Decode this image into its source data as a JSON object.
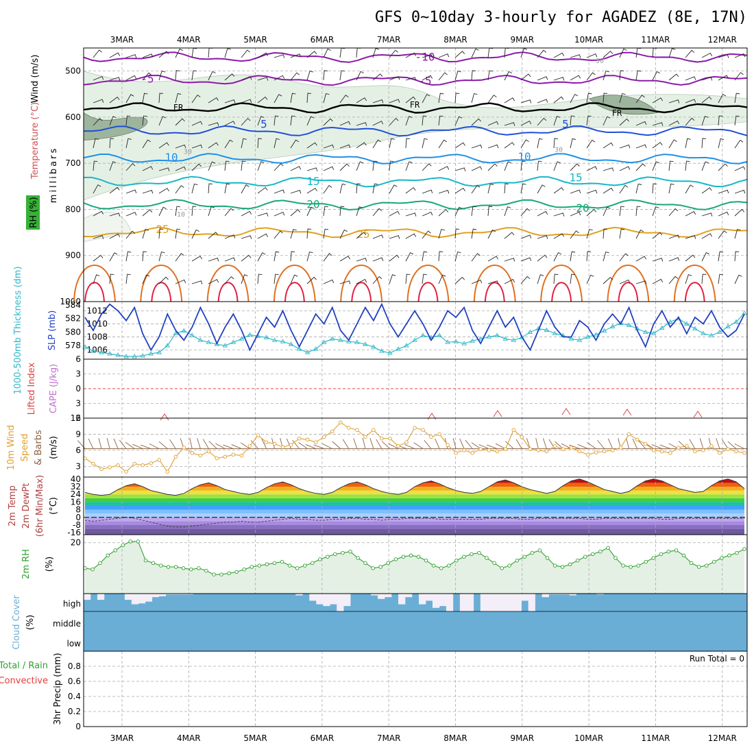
{
  "title": "GFS 0~10day 3-hourly for AGADEZ (8E, 17N)",
  "dates": [
    "3MAR",
    "4MAR",
    "5MAR",
    "6MAR",
    "7MAR",
    "8MAR",
    "9MAR",
    "10MAR",
    "11MAR",
    "12MAR"
  ],
  "colors": {
    "purple": "#8a1aa8",
    "black": "#000000",
    "blue": "#1f4fd6",
    "lightblue": "#1e90e6",
    "teal": "#16b8c8",
    "green": "#19a77a",
    "orange": "#e0a020",
    "darkorange": "#e07020",
    "red": "#e02040",
    "rh_fill": "#e5f0e5",
    "cloud": "#6aaed6",
    "slp": "#2040c0",
    "thick": "#30b8c8",
    "wind": "#e0a030",
    "barb": "#8b6040",
    "rh2m": "#30a030"
  },
  "chart_data": [
    {
      "type": "heatmap",
      "name": "upper-air",
      "ylabel_parts": [
        "Wind (m/s)",
        "Temperature (°C)",
        "RH (%)"
      ],
      "ylabel": "millibars",
      "y_ticks": [
        500,
        600,
        700,
        800,
        900,
        1000
      ],
      "ylim": [
        450,
        1000
      ],
      "contour_labels": [
        "-10",
        "-5",
        "-5",
        "FR",
        "FR",
        "FR",
        "5",
        "5",
        "10",
        "10",
        "15",
        "15",
        "20",
        "20",
        "25",
        "25",
        "30",
        "30",
        "30",
        "10"
      ],
      "isotherms": [
        {
          "label": "-10",
          "level": 470
        },
        {
          "label": "-5",
          "level": 520
        },
        {
          "label": "FR",
          "level": 580
        },
        {
          "label": "5",
          "level": 630
        },
        {
          "label": "10",
          "level": 690
        },
        {
          "label": "15",
          "level": 740
        },
        {
          "label": "20",
          "level": 790
        },
        {
          "label": "25",
          "level": 850
        }
      ]
    },
    {
      "type": "line",
      "name": "slp-thickness",
      "ylabel_left": "1000-500mb Thickness (dm)",
      "ylabel_right": "SLP (mb)",
      "left_ticks": [
        578,
        580,
        582,
        584
      ],
      "right_ticks": [
        1006,
        1008,
        1010,
        1012
      ],
      "series": [
        {
          "name": "SLP (mb)",
          "values": [
            1011.0,
            1009.0,
            1011.5,
            1013.0,
            1012.0,
            1010.5,
            1012.5,
            1008.5,
            1006.0,
            1008.0,
            1011.5,
            1009.0,
            1007.5,
            1009.5,
            1012.5,
            1010.0,
            1007.0,
            1009.5,
            1011.5,
            1009.0,
            1006.0,
            1008.5,
            1011.0,
            1009.5,
            1012.0,
            1009.0,
            1006.5,
            1009.0,
            1011.5,
            1010.0,
            1012.5,
            1009.0,
            1007.5,
            1010.0,
            1012.5,
            1010.5,
            1013.0,
            1010.0,
            1008.0,
            1010.0,
            1012.0,
            1010.0,
            1007.5,
            1009.5,
            1012.0,
            1011.0,
            1012.5,
            1009.0,
            1007.0,
            1009.5,
            1012.0,
            1009.5,
            1011.0,
            1008.0,
            1006.0,
            1009.0,
            1012.0,
            1009.5,
            1008.0,
            1008.0,
            1010.5,
            1009.5,
            1007.5,
            1010.0,
            1011.5,
            1010.0,
            1012.5,
            1009.0,
            1006.5,
            1010.0,
            1012.0,
            1009.5,
            1011.0,
            1008.5,
            1011.0,
            1010.0,
            1012.0,
            1009.5,
            1008.0,
            1009.0,
            1011.5
          ]
        },
        {
          "name": "1000-500mb Thickness (dm)",
          "values": [
            577.8,
            577.2,
            577.0,
            576.8,
            576.6,
            576.4,
            576.4,
            576.5,
            576.8,
            577.0,
            578.0,
            579.8,
            580.2,
            579.5,
            578.8,
            578.5,
            578.2,
            578.0,
            578.5,
            579.0,
            579.6,
            579.4,
            579.2,
            578.8,
            578.6,
            578.2,
            577.5,
            577.0,
            577.5,
            578.5,
            579.0,
            578.8,
            578.6,
            578.5,
            578.2,
            577.8,
            577.2,
            576.9,
            577.5,
            578.0,
            578.8,
            579.5,
            579.2,
            579.5,
            578.5,
            578.6,
            578.3,
            578.7,
            579.0,
            579.3,
            579.5,
            579.0,
            578.8,
            579.2,
            580.0,
            580.5,
            580.3,
            579.8,
            579.5,
            579.0,
            578.8,
            579.3,
            579.6,
            580.2,
            580.8,
            581.3,
            581.0,
            580.5,
            580.0,
            579.8,
            580.6,
            581.5,
            582.0,
            581.2,
            580.5,
            579.8,
            579.5,
            580.0,
            580.8,
            581.5,
            582.8
          ]
        }
      ]
    },
    {
      "type": "line",
      "name": "lifted-cape",
      "ylabel": "Lifted Index",
      "ylabel2": "CAPE (J/kg)",
      "y_ticks": [
        -6,
        -3,
        0,
        3,
        6
      ],
      "ylim": [
        -6,
        6
      ]
    },
    {
      "type": "line",
      "name": "wind10m",
      "ylabel": "10m Wind Speed & Barbs (m/s)",
      "y_ticks": [
        3,
        6,
        9,
        12
      ],
      "ylim": [
        1,
        12
      ],
      "series": [
        {
          "name": "Speed",
          "values": [
            4.5,
            3.5,
            2.5,
            2.8,
            3.2,
            2.0,
            3.5,
            3.2,
            3.6,
            4.2,
            2.0,
            4.8,
            6.5,
            5.5,
            5.0,
            5.8,
            4.5,
            4.8,
            5.2,
            5.0,
            6.8,
            8.8,
            7.5,
            7.2,
            6.6,
            7.0,
            8.2,
            8.0,
            7.5,
            8.5,
            9.5,
            11.2,
            10.2,
            9.8,
            8.5,
            9.8,
            8.2,
            8.2,
            6.8,
            7.5,
            10.2,
            9.8,
            8.5,
            9.0,
            7.0,
            5.5,
            6.0,
            5.5,
            6.2,
            6.0,
            5.8,
            6.2,
            9.8,
            8.5,
            6.2,
            6.0,
            5.8,
            6.8,
            6.2,
            6.5,
            5.8,
            5.2,
            5.6,
            5.8,
            6.0,
            6.5,
            9.0,
            8.0,
            7.2,
            6.0,
            5.8,
            5.5,
            6.5,
            6.8,
            5.8,
            6.0,
            6.8,
            5.5,
            6.2,
            5.8,
            5.5
          ]
        }
      ]
    },
    {
      "type": "area",
      "name": "temp2m",
      "ylabel": "2m Temp 2m DewPt (6hr Min/Max) (°C)",
      "y_ticks": [
        -16,
        -8,
        0,
        8,
        16,
        24,
        32,
        40
      ],
      "ylim": [
        -18,
        42
      ],
      "series": [
        {
          "name": "2m Temp",
          "values": [
            26,
            24,
            23,
            24,
            29,
            33,
            35,
            32,
            28,
            26,
            24,
            23,
            25,
            30,
            34,
            36,
            33,
            29,
            27,
            25,
            24,
            26,
            31,
            35,
            37,
            34,
            30,
            27,
            25,
            24,
            26,
            31,
            35,
            37,
            34,
            30,
            27,
            25,
            24,
            26,
            32,
            36,
            38,
            35,
            31,
            28,
            26,
            25,
            27,
            32,
            37,
            39,
            36,
            32,
            29,
            27,
            25,
            27,
            33,
            38,
            40,
            37,
            33,
            29,
            27,
            25,
            27,
            33,
            38,
            40,
            38,
            34,
            30,
            28,
            26,
            27,
            33,
            38,
            40,
            37,
            30
          ]
        },
        {
          "name": "2m DewPt",
          "values": [
            -3,
            -4,
            -3,
            -2,
            -1,
            0,
            -1,
            -3,
            -5,
            -7,
            -9,
            -10,
            -10,
            -9,
            -8,
            -7,
            -6,
            -5,
            -5,
            -4,
            -5,
            -5,
            -4,
            -3,
            -2,
            -1,
            -2,
            -2,
            -3,
            -3,
            -2,
            -2,
            -1,
            -1,
            -2,
            -2,
            -3,
            -2,
            -2,
            -1,
            -1,
            -1,
            -1,
            -2,
            -2,
            -2,
            -2,
            -2,
            -2,
            -1,
            -1,
            -1,
            -1,
            -2,
            -2,
            -1,
            -1,
            -1,
            -1,
            -1,
            -1,
            -2,
            -2,
            -1,
            -1,
            -1,
            -1,
            -1,
            -1,
            -1,
            -2,
            -2,
            -1,
            -1,
            -1,
            -1,
            -1,
            -1,
            -1,
            -1,
            -1
          ]
        }
      ]
    },
    {
      "type": "area",
      "name": "rh2m",
      "ylabel": "2m RH (%)",
      "y_ticks": [
        20
      ],
      "ylim": [
        0,
        22
      ],
      "series": [
        {
          "name": "2m RH",
          "values": [
            10,
            9.5,
            12,
            15,
            17,
            19,
            20.5,
            20.5,
            13,
            12,
            11,
            10.5,
            10.5,
            10,
            9.5,
            10,
            9,
            7.5,
            7.5,
            8,
            8.5,
            9.5,
            10.5,
            11,
            11.5,
            12,
            12.5,
            11,
            10,
            11,
            12,
            13.5,
            14.5,
            15.5,
            16,
            16.5,
            14,
            12,
            10,
            10.5,
            12,
            13.5,
            14.5,
            15,
            14.5,
            13,
            11,
            10,
            11,
            13,
            14.5,
            15.5,
            16,
            14,
            12,
            10,
            11,
            13,
            14.5,
            16,
            17,
            14,
            11,
            10.5,
            11.5,
            13,
            14.5,
            15.5,
            16.5,
            18,
            14,
            11,
            10.5,
            11,
            12.5,
            14,
            15.5,
            16.5,
            17,
            15,
            12,
            10.5,
            11,
            12.5,
            14,
            15,
            16,
            17.5
          ]
        }
      ]
    },
    {
      "type": "bar",
      "name": "cloud",
      "ylabel": "Cloud Cover (%)",
      "categories": [
        "high",
        "middle",
        "low"
      ],
      "high_values": [
        65,
        100,
        65,
        100,
        100,
        100,
        65,
        40,
        45,
        55,
        80,
        85,
        95,
        95,
        95,
        95,
        100,
        100,
        100,
        100,
        100,
        100,
        100,
        100,
        100,
        100,
        100,
        100,
        100,
        100,
        100,
        90,
        100,
        60,
        40,
        30,
        40,
        0,
        30,
        100,
        100,
        100,
        90,
        70,
        80,
        100,
        40,
        80,
        100,
        40,
        60,
        20,
        30,
        0,
        100,
        0,
        0,
        100,
        0,
        0,
        0,
        0,
        0,
        0,
        60,
        0,
        100,
        80,
        95,
        95,
        95,
        90,
        100,
        100,
        100,
        95,
        100,
        100,
        100,
        100,
        100,
        100,
        100,
        100,
        100,
        100,
        100,
        100,
        100,
        100,
        100,
        100,
        100,
        100,
        100,
        100,
        100
      ]
    },
    {
      "type": "line",
      "name": "precip",
      "ylabel": "3hr Precip (mm)",
      "ylabel2": "Total / Rain",
      "ylabel3": "Convective",
      "y_ticks": [
        0,
        0.2,
        0.4,
        0.6,
        0.8
      ],
      "ylim": [
        0,
        1
      ],
      "run_total": "Run Total = 0"
    }
  ]
}
